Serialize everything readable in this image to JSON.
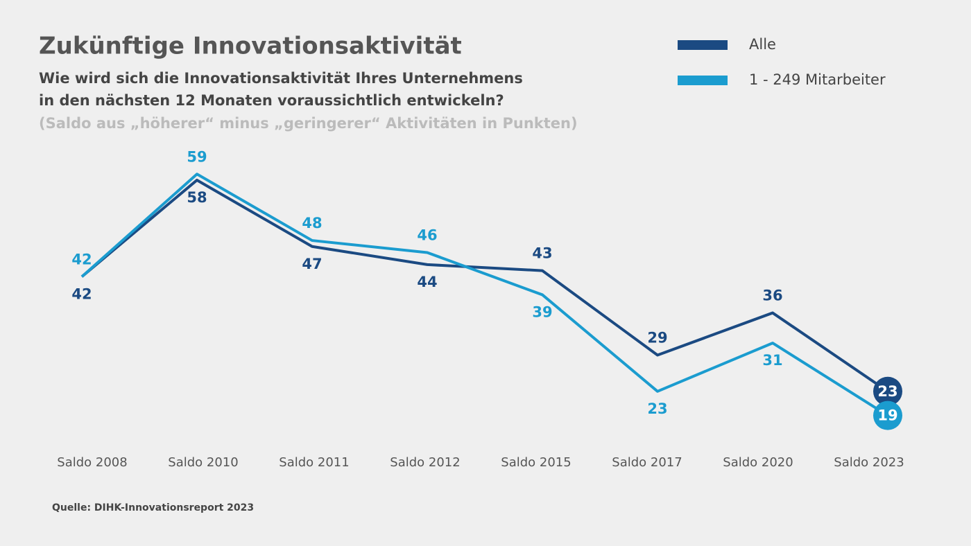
{
  "chart_data": {
    "type": "line",
    "title": "Zukünftige Innovationsaktivität",
    "subtitle": [
      "Wie wird sich die Innovationsaktivität Ihres Unternehmens",
      "in den nächsten 12 Monaten voraussichtlich entwickeln?"
    ],
    "note": "(Saldo aus „höherer“ minus „geringerer“ Aktivitäten in Punkten)",
    "source": "Quelle: DIHK-Innovationsreport 2023",
    "categories": [
      "Saldo 2008",
      "Saldo 2010",
      "Saldo 2011",
      "Saldo 2012",
      "Saldo 2015",
      "Saldo 2017",
      "Saldo 2020",
      "Saldo 2023"
    ],
    "series": [
      {
        "name": "Alle",
        "color": "#1b4a82",
        "values": [
          42,
          58,
          47,
          44,
          43,
          29,
          36,
          23
        ]
      },
      {
        "name": "1 - 249 Mitarbeiter",
        "color": "#1b9ccf",
        "values": [
          42,
          59,
          48,
          46,
          39,
          23,
          31,
          19
        ]
      }
    ],
    "ylim": [
      10,
      65
    ],
    "grid": false,
    "legend": "top-right"
  }
}
